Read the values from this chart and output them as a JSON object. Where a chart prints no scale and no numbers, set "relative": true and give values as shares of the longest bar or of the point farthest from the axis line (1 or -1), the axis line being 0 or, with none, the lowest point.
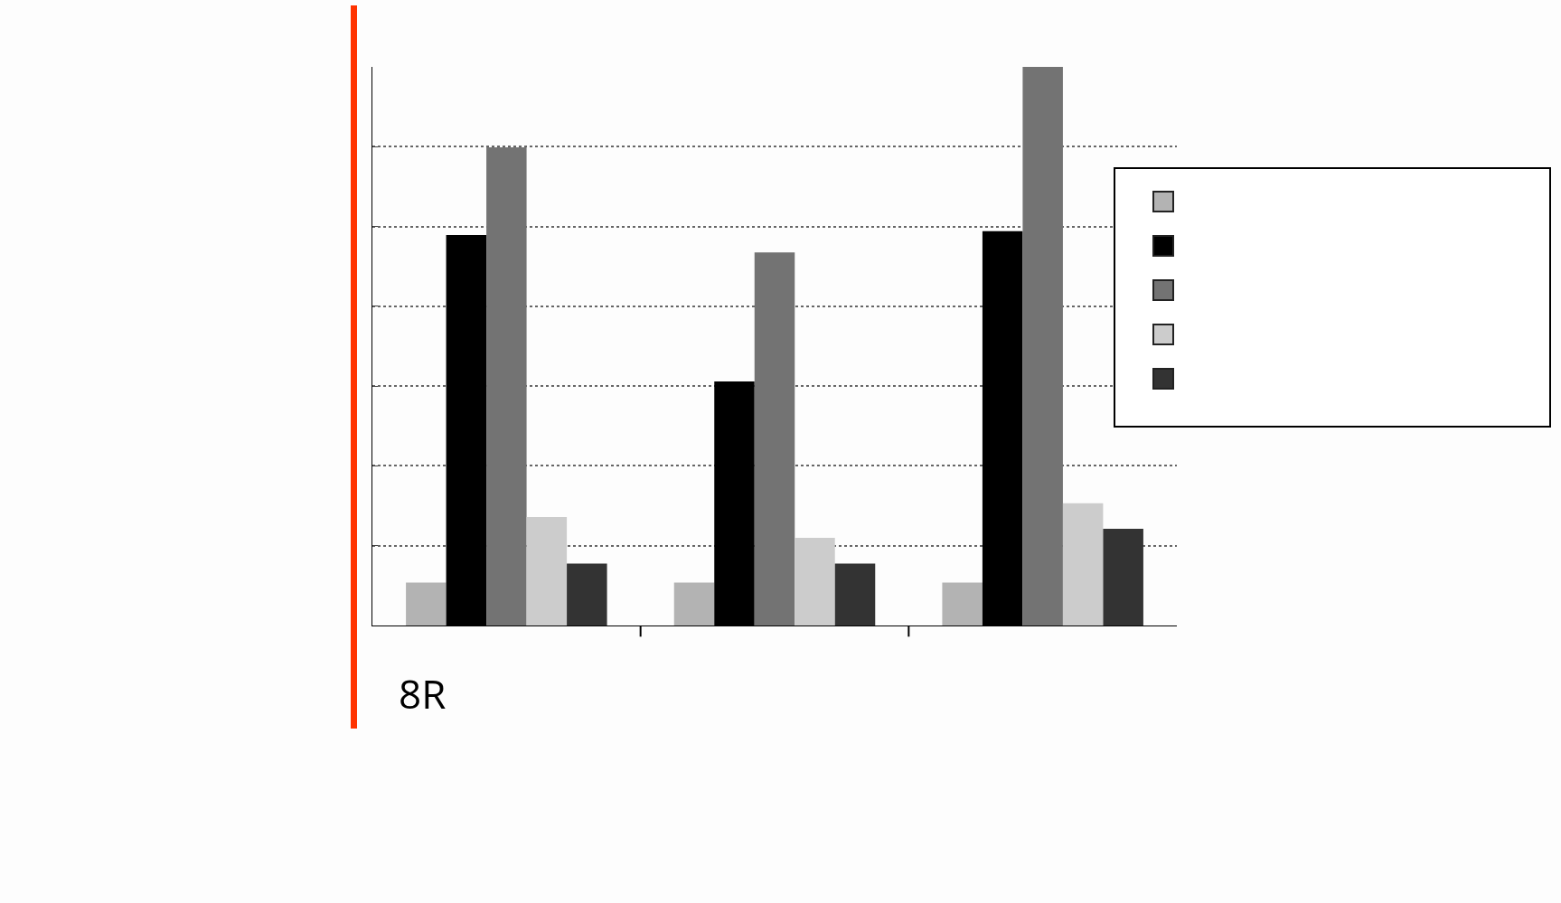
{
  "chart_data": {
    "type": "bar",
    "relative": true,
    "categories": [
      null,
      null,
      null
    ],
    "series": [
      {
        "color": "#b3b3b3",
        "values": [
          0.077,
          0.077,
          0.077
        ]
      },
      {
        "color": "#000000",
        "values": [
          0.699,
          0.437,
          0.706
        ]
      },
      {
        "color": "#737373",
        "values": [
          0.856,
          0.668,
          1.0
        ]
      },
      {
        "color": "#cccccc",
        "values": [
          0.194,
          0.157,
          0.219
        ]
      },
      {
        "color": "#333333",
        "values": [
          0.111,
          0.111,
          0.173
        ]
      }
    ],
    "grid": "y",
    "annotations": [
      "8R"
    ]
  }
}
